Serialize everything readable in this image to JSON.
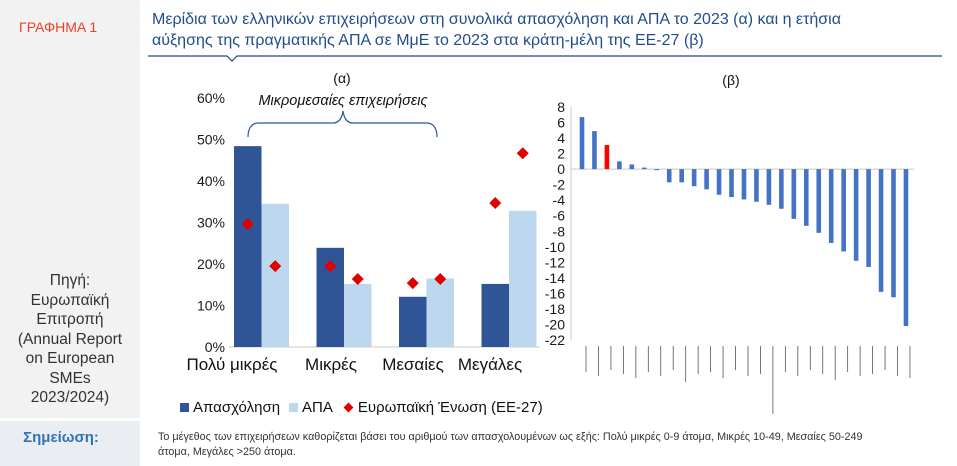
{
  "figure_label": "ΓΡΑΦΗΜΑ 1",
  "title": {
    "lines": [
      "Μερίδια των ελληνικών επιχειρήσεων στη συνολικά απασχόληση και ΑΠΑ το 2023 (α) και η ετήσια",
      "αύξησης της πραγματικής ΑΠΑ σε ΜμΕ το 2023 στα κράτη-μέλη της ΕΕ-27 (β)"
    ]
  },
  "source": {
    "lines": [
      "Πηγή:",
      "Ευρωπαϊκή",
      "Επιτροπή",
      "(Annual Report",
      "on European",
      "SMEs",
      "2023/2024)"
    ]
  },
  "note": {
    "label": "Σημείωση:",
    "lines": [
      "Το μέγεθος των επιχειρήσεων καθορίζεται βάσει του αριθμού των απασχολουμένων ως εξής: Πολύ μικρές 0-9 άτομα, Μικρές 10-49, Μεσαίες 50-249",
      "άτομα, Μεγάλες >250 άτομα."
    ]
  },
  "colors": {
    "figure_label": "#e8412c",
    "title": "#1f4e8c",
    "note_label": "#2e75b6",
    "bracket": "#2f5597"
  },
  "chart_data": [
    {
      "panel_label": "(α)",
      "type": "bar",
      "categories": [
        "Πολύ μικρές",
        "Μικρές",
        "Μεσαίες",
        "Μεγάλες"
      ],
      "ylim": [
        0,
        60
      ],
      "y_ticks": [
        0,
        10,
        20,
        30,
        40,
        50,
        60
      ],
      "y_tick_labels": [
        "0%",
        "10%",
        "20%",
        "30%",
        "40%",
        "50%",
        "60%"
      ],
      "series": [
        {
          "name": "Απασχόληση",
          "type": "bar",
          "color": "#2f5597",
          "values": [
            48.4,
            23.9,
            12.1,
            15.2
          ]
        },
        {
          "name": "ΑΠΑ",
          "type": "bar",
          "color": "#bdd7ee",
          "values": [
            34.5,
            15.2,
            16.5,
            32.8
          ]
        },
        {
          "name": "Ευρωπαϊκή Ένωση (ΕΕ-27)",
          "type": "marker",
          "marker": "diamond",
          "color": "#e00000",
          "aligned_to_series": [
            0,
            1
          ],
          "values": [
            [
              29.6,
              19.5,
              15.4,
              34.7
            ],
            [
              19.5,
              16.4,
              16.4,
              46.7
            ]
          ]
        }
      ],
      "annotation": {
        "text": "Μικρομεσαίες επιχειρήσεις",
        "category_span": [
          0,
          2
        ]
      },
      "legend": "bottom-left",
      "grid": false
    },
    {
      "panel_label": "(β)",
      "type": "bar",
      "values": [
        6.7,
        4.9,
        3.1,
        1.0,
        0.6,
        0.2,
        -0.1,
        -1.7,
        -1.7,
        -2.2,
        -2.6,
        -3.3,
        -3.6,
        -3.9,
        -4.2,
        -4.6,
        -5.1,
        -6.4,
        -7.3,
        -8.2,
        -9.5,
        -10.6,
        -11.8,
        -12.6,
        -15.8,
        -16.5,
        -20.2
      ],
      "highlight_index": 2,
      "color": "#4472c4",
      "highlight_color": "#ff0000",
      "ylim": [
        -22,
        8
      ],
      "y_ticks": [
        8,
        6,
        4,
        2,
        0,
        -2,
        -4,
        -6,
        -8,
        -10,
        -12,
        -14,
        -16,
        -18,
        -20,
        -22
      ],
      "y_tick_labels": [
        "8",
        "6",
        "4",
        "2",
        "0",
        "-2",
        "-4",
        "-6",
        "-8",
        "-10",
        "-12",
        "-14",
        "-16",
        "-18",
        "-20",
        "-22"
      ],
      "legend": "none",
      "grid": false
    }
  ]
}
